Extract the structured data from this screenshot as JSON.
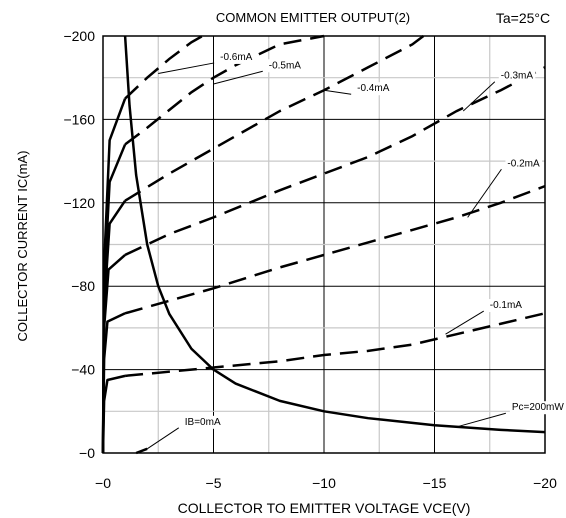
{
  "chart_data": {
    "type": "line",
    "title": "COMMON EMITTER OUTPUT(2)",
    "condition": "Ta=25°C",
    "xlabel": "COLLECTOR TO EMITTER VOLTAGE VCE(V)",
    "ylabel": "COLLECTOR CURRENT IC(mA)",
    "xlim": [
      0,
      -20
    ],
    "ylim": [
      0,
      -200
    ],
    "grid": true,
    "x_ticks": [
      {
        "value": 0,
        "label": "−0"
      },
      {
        "value": -5,
        "label": "−5"
      },
      {
        "value": -10,
        "label": "−10"
      },
      {
        "value": -15,
        "label": "−15"
      },
      {
        "value": -20,
        "label": "−20"
      }
    ],
    "y_ticks": [
      {
        "value": 0,
        "label": "−0"
      },
      {
        "value": -40,
        "label": "−40"
      },
      {
        "value": -80,
        "label": "−80"
      },
      {
        "value": -120,
        "label": "−120"
      },
      {
        "value": -160,
        "label": "−160"
      },
      {
        "value": -200,
        "label": "−200"
      }
    ],
    "series": [
      {
        "name": "IB=0mA",
        "style": "solid",
        "x": [
          -1.5,
          -2.0
        ],
        "y": [
          0,
          -2
        ],
        "label_at": [
          -3.7,
          -14
        ],
        "leader_to": [
          -2.0,
          -2
        ]
      },
      {
        "name": "-0.1mA",
        "style": "solid-dashed",
        "x": [
          0,
          -0.05,
          -0.2,
          -1.0,
          -3.0,
          -5.0,
          -8.0,
          -10.0,
          -12.0,
          -14.0,
          -16.0,
          -18.0,
          -20.0
        ],
        "y": [
          0,
          -25,
          -35,
          -37,
          -39,
          -41,
          -44,
          -47,
          -49,
          -52,
          -57,
          -62,
          -67
        ],
        "label_at": [
          -17.5,
          -70
        ],
        "leader_to": [
          -15.5,
          -57
        ]
      },
      {
        "name": "-0.2mA",
        "style": "solid-dashed",
        "x": [
          0,
          -0.05,
          -0.2,
          -1.0,
          -3.0,
          -5.0,
          -8.0,
          -10.0,
          -12.0,
          -14.0,
          -16.0,
          -18.0,
          -20.0
        ],
        "y": [
          0,
          -45,
          -63,
          -67,
          -73,
          -79,
          -89,
          -95,
          -101,
          -107,
          -113,
          -120,
          -128
        ],
        "label_at": [
          -18.3,
          -138
        ],
        "leader_to": [
          -16.5,
          -113
        ]
      },
      {
        "name": "-0.3mA",
        "style": "solid-dashed",
        "x": [
          0,
          -0.05,
          -0.25,
          -1.0,
          -3.0,
          -5.0,
          -8.0,
          -10.0,
          -12.0,
          -14.0,
          -16.0,
          -18.0,
          -20.0
        ],
        "y": [
          0,
          -60,
          -88,
          -95,
          -105,
          -113,
          -126,
          -134,
          -142,
          -152,
          -164,
          -174,
          -185
        ],
        "label_at": [
          -18.0,
          -180
        ],
        "leader_to": [
          -16.3,
          -164
        ]
      },
      {
        "name": "-0.4mA",
        "style": "solid-dashed",
        "x": [
          0,
          -0.05,
          -0.3,
          -1.0,
          -3.0,
          -5.0,
          -8.0,
          -10.0,
          -12.0,
          -14.0,
          -14.5
        ],
        "y": [
          0,
          -70,
          -110,
          -121,
          -134,
          -146,
          -164,
          -174,
          -185,
          -196,
          -200
        ],
        "label_at": [
          -11.5,
          -174
        ],
        "leader_to": [
          -10.0,
          -174
        ]
      },
      {
        "name": "-0.5mA",
        "style": "solid-dashed",
        "x": [
          0,
          -0.05,
          -0.3,
          -1.0,
          -2.0,
          -4.0,
          -5.0,
          -6.0,
          -8.0,
          -10.0
        ],
        "y": [
          0,
          -80,
          -130,
          -148,
          -156,
          -173,
          -180,
          -186,
          -196,
          -200
        ],
        "label_at": [
          -7.5,
          -185
        ],
        "leader_to": [
          -5.0,
          -177
        ]
      },
      {
        "name": "-0.6mA",
        "style": "solid-dashed",
        "x": [
          0,
          -0.05,
          -0.3,
          -1.0,
          -2.0,
          -3.0,
          -4.0,
          -4.5
        ],
        "y": [
          0,
          -90,
          -150,
          -170,
          -180,
          -189,
          -197,
          -200
        ],
        "label_at": [
          -5.3,
          -189
        ],
        "leader_to": [
          -2.5,
          -182
        ]
      },
      {
        "name": "Pc=200mW",
        "style": "solid",
        "x": [
          -1.0,
          -1.2,
          -1.5,
          -2.0,
          -2.5,
          -3.0,
          -4.0,
          -5.0,
          -6.0,
          -8.0,
          -10.0,
          -12.0,
          -15.0,
          -18.0,
          -20.0
        ],
        "y": [
          -200,
          -166.7,
          -133.3,
          -100,
          -80,
          -66.7,
          -50,
          -40,
          -33.3,
          -25,
          -20,
          -16.7,
          -13.3,
          -11.1,
          -10
        ],
        "label_at": [
          -18.5,
          -21
        ],
        "leader_to": [
          -16.0,
          -12.5
        ]
      }
    ]
  }
}
